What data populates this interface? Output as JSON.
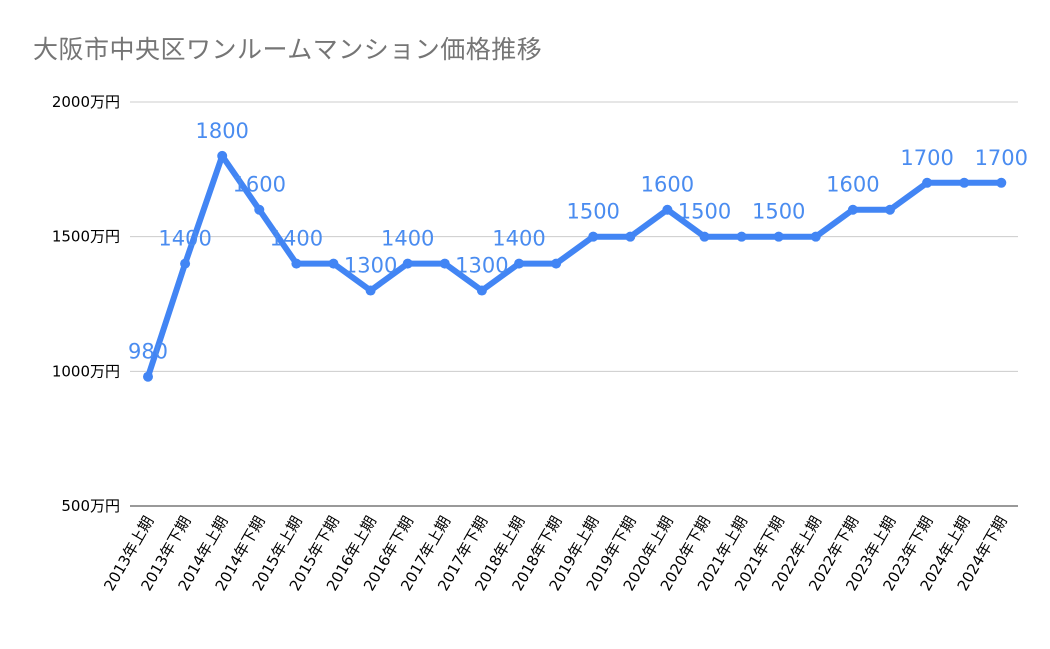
{
  "chart_data": {
    "type": "line",
    "title": "大阪市中央区ワンルームマンション価格推移",
    "xlabel": "",
    "ylabel": "",
    "categories": [
      "2013年上期",
      "2013年下期",
      "2014年上期",
      "2014年下期",
      "2015年上期",
      "2015年下期",
      "2016年上期",
      "2016年下期",
      "2017年上期",
      "2017年下期",
      "2018年上期",
      "2018年下期",
      "2019年上期",
      "2019年下期",
      "2020年上期",
      "2020年下期",
      "2021年上期",
      "2021年下期",
      "2022年上期",
      "2022年下期",
      "2023年上期",
      "2023年下期",
      "2024年上期",
      "2024年下期"
    ],
    "series": [
      {
        "values": [
          980,
          1400,
          1800,
          1600,
          1400,
          1400,
          1300,
          1400,
          1400,
          1300,
          1400,
          1400,
          1500,
          1500,
          1600,
          1500,
          1500,
          1500,
          1500,
          1600,
          1600,
          1700,
          1700,
          1700
        ]
      }
    ],
    "data_labels": [
      {
        "index": 0,
        "text": "980"
      },
      {
        "index": 1,
        "text": "1400"
      },
      {
        "index": 2,
        "text": "1800"
      },
      {
        "index": 3,
        "text": "1600"
      },
      {
        "index": 4,
        "text": "1400"
      },
      {
        "index": 6,
        "text": "1300"
      },
      {
        "index": 7,
        "text": "1400"
      },
      {
        "index": 9,
        "text": "1300"
      },
      {
        "index": 10,
        "text": "1400"
      },
      {
        "index": 12,
        "text": "1500"
      },
      {
        "index": 14,
        "text": "1600"
      },
      {
        "index": 15,
        "text": "1500"
      },
      {
        "index": 17,
        "text": "1500"
      },
      {
        "index": 19,
        "text": "1600"
      },
      {
        "index": 21,
        "text": "1700"
      },
      {
        "index": 23,
        "text": "1700"
      }
    ],
    "ylim": [
      500,
      2000
    ],
    "yticks": [
      500,
      1000,
      1500,
      2000
    ],
    "ytick_labels": [
      "500万円",
      "1000万円",
      "1500万円",
      "2000万円"
    ],
    "grid": true,
    "line_color": "#4285f4",
    "label_color": "#4a8cf0",
    "grid_color": "#cccccc"
  }
}
